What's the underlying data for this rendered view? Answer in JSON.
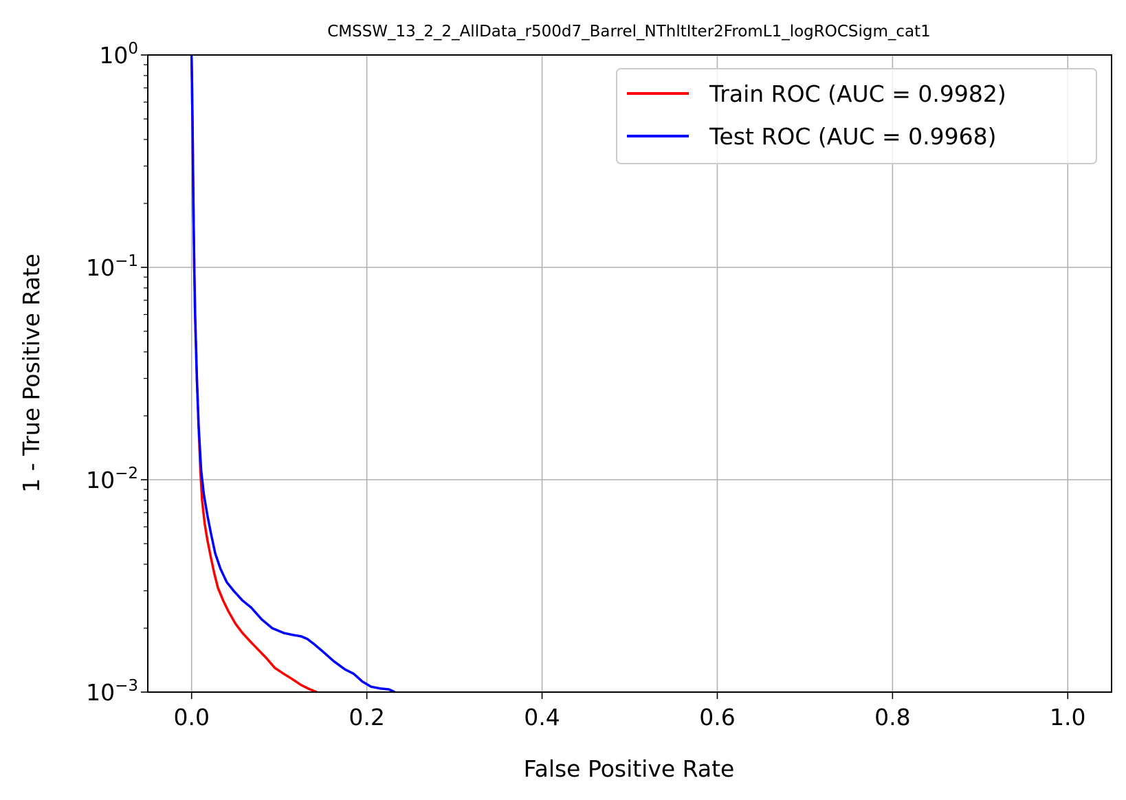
{
  "chart_data": {
    "type": "line",
    "title": "CMSSW_13_2_2_AllData_r500d7_Barrel_NThltIter2FromL1_logROCSigm_cat1",
    "xlabel": "False Positive Rate",
    "ylabel": "1 - True Positive Rate",
    "xlim": [
      -0.05,
      1.05
    ],
    "ylim": [
      0.001,
      1
    ],
    "yscale": "log",
    "grid": true,
    "legend_position": "top-right",
    "x_ticks": [
      {
        "value": 0.0,
        "label": "0.0"
      },
      {
        "value": 0.2,
        "label": "0.2"
      },
      {
        "value": 0.4,
        "label": "0.4"
      },
      {
        "value": 0.6,
        "label": "0.6"
      },
      {
        "value": 0.8,
        "label": "0.8"
      },
      {
        "value": 1.0,
        "label": "1.0"
      }
    ],
    "y_ticks": [
      {
        "value": 1,
        "base": "10",
        "exp": "0"
      },
      {
        "value": 0.1,
        "base": "10",
        "exp": "−1"
      },
      {
        "value": 0.01,
        "base": "10",
        "exp": "−2"
      },
      {
        "value": 0.001,
        "base": "10",
        "exp": "−3"
      }
    ],
    "series": [
      {
        "name": "Train ROC (AUC = 0.9982)",
        "color": "#ff0000",
        "x": [
          0.0,
          0.001,
          0.002,
          0.003,
          0.004,
          0.006,
          0.008,
          0.01,
          0.012,
          0.015,
          0.018,
          0.022,
          0.026,
          0.03,
          0.036,
          0.042,
          0.05,
          0.058,
          0.066,
          0.075,
          0.085,
          0.095,
          0.105,
          0.115,
          0.125,
          0.135,
          0.143
        ],
        "y": [
          1.0,
          0.5,
          0.2,
          0.1,
          0.06,
          0.03,
          0.018,
          0.011,
          0.008,
          0.0062,
          0.0052,
          0.0043,
          0.0036,
          0.0031,
          0.0027,
          0.0024,
          0.0021,
          0.0019,
          0.00175,
          0.0016,
          0.00145,
          0.0013,
          0.00122,
          0.00115,
          0.00108,
          0.00103,
          0.001
        ]
      },
      {
        "name": "Test ROC (AUC = 0.9968)",
        "color": "#0000ff",
        "x": [
          0.0,
          0.001,
          0.002,
          0.003,
          0.004,
          0.006,
          0.008,
          0.011,
          0.014,
          0.018,
          0.022,
          0.027,
          0.033,
          0.04,
          0.048,
          0.058,
          0.068,
          0.08,
          0.092,
          0.105,
          0.115,
          0.125,
          0.132,
          0.14,
          0.15,
          0.162,
          0.175,
          0.185,
          0.195,
          0.205,
          0.215,
          0.225,
          0.232
        ],
        "y": [
          1.0,
          0.5,
          0.2,
          0.1,
          0.06,
          0.03,
          0.018,
          0.011,
          0.0085,
          0.0068,
          0.0056,
          0.0045,
          0.0038,
          0.0033,
          0.003,
          0.0027,
          0.0025,
          0.0022,
          0.002,
          0.0019,
          0.00186,
          0.00183,
          0.00178,
          0.00168,
          0.00155,
          0.0014,
          0.00128,
          0.00122,
          0.00112,
          0.00106,
          0.00104,
          0.00103,
          0.001
        ]
      }
    ]
  }
}
